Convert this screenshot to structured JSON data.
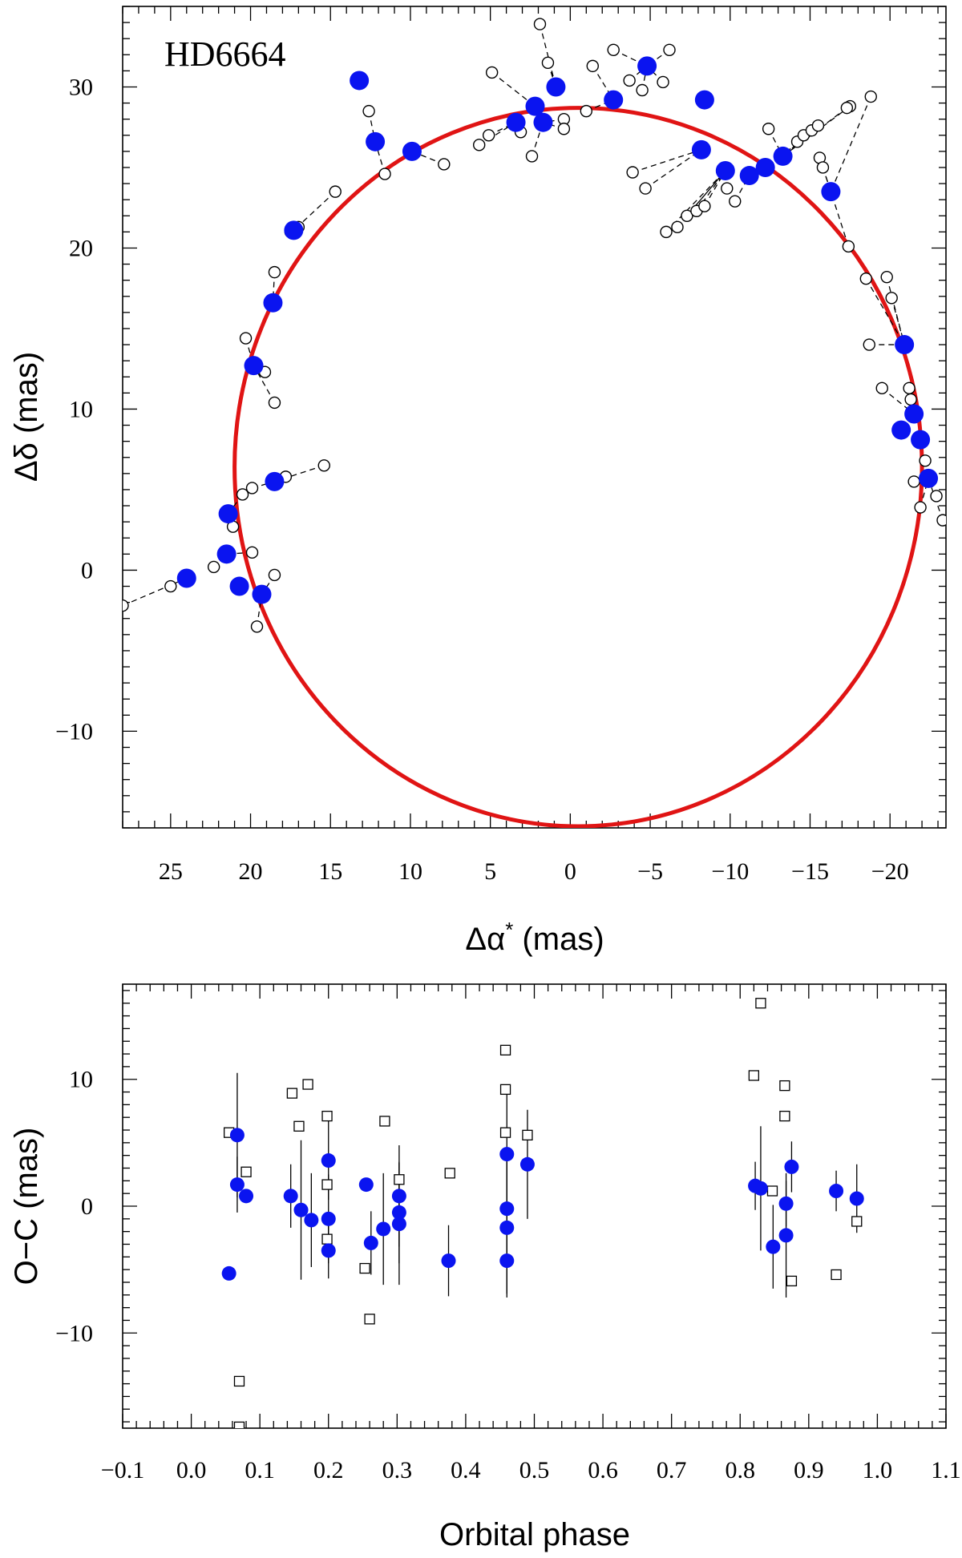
{
  "chart_data": [
    {
      "type": "scatter",
      "title": "HD6664",
      "xlabel": "Δα",
      "xlabel_sup": "*",
      "xlabel_unit": " (mas)",
      "ylabel": "Δδ (mas)",
      "xlim": [
        28,
        -23.5
      ],
      "ylim": [
        -16,
        35
      ],
      "xticks": [
        25,
        20,
        15,
        10,
        5,
        0,
        -5,
        -10,
        -15,
        -20
      ],
      "xtick_labels": [
        "25",
        "20",
        "15",
        "10",
        "5",
        "0",
        "−5",
        "−10",
        "−15",
        "−20"
      ],
      "yticks": [
        -10,
        0,
        10,
        20,
        30
      ],
      "ytick_labels": [
        "−10",
        "0",
        "10",
        "20",
        "30"
      ],
      "orbit_ellipse": {
        "center": [
          -0.5,
          6.4
        ],
        "semi_x": 21.5,
        "semi_y": 22.3
      },
      "filled_points": [
        [
          24,
          -0.5
        ],
        [
          21.5,
          1
        ],
        [
          20.7,
          -1
        ],
        [
          21.4,
          3.5
        ],
        [
          18.5,
          5.5
        ],
        [
          19.3,
          -1.5
        ],
        [
          19.8,
          12.7
        ],
        [
          18.6,
          16.6
        ],
        [
          17.3,
          21.1
        ],
        [
          13.2,
          30.4
        ],
        [
          12.2,
          26.6
        ],
        [
          9.9,
          26
        ],
        [
          3.4,
          27.8
        ],
        [
          2.2,
          28.8
        ],
        [
          1.7,
          27.8
        ],
        [
          0.9,
          30
        ],
        [
          -2.7,
          29.2
        ],
        [
          -4.8,
          31.3
        ],
        [
          -8.4,
          29.2
        ],
        [
          -8.2,
          26.1
        ],
        [
          -9.7,
          24.8
        ],
        [
          -11.2,
          24.5
        ],
        [
          -12.2,
          25
        ],
        [
          -13.3,
          25.7
        ],
        [
          -16.3,
          23.5
        ],
        [
          -20.9,
          14
        ],
        [
          -20.7,
          8.7
        ],
        [
          -21.5,
          9.7
        ],
        [
          -21.9,
          8.1
        ],
        [
          -22.4,
          5.7
        ]
      ],
      "open_points": [
        [
          28,
          -2.2
        ],
        [
          25,
          -1
        ],
        [
          22.3,
          0.2
        ],
        [
          19.9,
          1.1
        ],
        [
          21.1,
          2.7
        ],
        [
          20.5,
          4.7
        ],
        [
          19.9,
          5.1
        ],
        [
          17.8,
          5.8
        ],
        [
          15.4,
          6.5
        ],
        [
          19.6,
          -3.5
        ],
        [
          18.5,
          -0.3
        ],
        [
          20.3,
          14.4
        ],
        [
          19.1,
          12.3
        ],
        [
          18.5,
          10.4
        ],
        [
          18.5,
          18.5
        ],
        [
          17.5,
          21
        ],
        [
          17,
          21.3
        ],
        [
          14.7,
          23.5
        ],
        [
          12.6,
          28.5
        ],
        [
          11.6,
          24.6
        ],
        [
          7.9,
          25.2
        ],
        [
          5.7,
          26.4
        ],
        [
          5.1,
          27
        ],
        [
          4.9,
          30.9
        ],
        [
          2.4,
          25.7
        ],
        [
          3.1,
          27.2
        ],
        [
          1.9,
          33.9
        ],
        [
          1.4,
          31.5
        ],
        [
          0.4,
          28
        ],
        [
          0.4,
          27.4
        ],
        [
          -1,
          28.5
        ],
        [
          -1.4,
          31.3
        ],
        [
          -2.7,
          32.3
        ],
        [
          -3.7,
          30.4
        ],
        [
          -4.5,
          29.8
        ],
        [
          -5.8,
          30.3
        ],
        [
          -6.2,
          32.3
        ],
        [
          -3.9,
          24.7
        ],
        [
          -4.7,
          23.7
        ],
        [
          -6,
          21
        ],
        [
          -6.7,
          21.3
        ],
        [
          -7.3,
          22
        ],
        [
          -7.9,
          22.3
        ],
        [
          -8.4,
          22.6
        ],
        [
          -9.8,
          23.7
        ],
        [
          -10.3,
          22.9
        ],
        [
          -12.4,
          27.4
        ],
        [
          -14.2,
          26.6
        ],
        [
          -14.6,
          27
        ],
        [
          -15.1,
          27.3
        ],
        [
          -15.5,
          27.6
        ],
        [
          -15.6,
          25.6
        ],
        [
          -15.8,
          25
        ],
        [
          -17.5,
          28.8
        ],
        [
          -17.3,
          28.7
        ],
        [
          -18.8,
          29.4
        ],
        [
          -17.4,
          20.1
        ],
        [
          -18.5,
          18.1
        ],
        [
          -19.8,
          18.2
        ],
        [
          -20.1,
          16.9
        ],
        [
          -18.7,
          14
        ],
        [
          -19.5,
          11.3
        ],
        [
          -21.2,
          11.3
        ],
        [
          -21.3,
          10.6
        ],
        [
          -21.5,
          5.5
        ],
        [
          -22.2,
          6.8
        ],
        [
          -22.9,
          4.6
        ],
        [
          -23.3,
          3.1
        ],
        [
          -21.9,
          3.9
        ]
      ]
    },
    {
      "type": "scatter",
      "xlabel": "Orbital phase",
      "ylabel": "O−C (mas)",
      "xlim": [
        -0.1,
        1.1
      ],
      "ylim": [
        -17.5,
        17.5
      ],
      "xticks": [
        -0.1,
        0,
        0.1,
        0.2,
        0.3,
        0.4,
        0.5,
        0.6,
        0.7,
        0.8,
        0.9,
        1.0,
        1.1
      ],
      "xtick_labels": [
        "−0.1",
        "0.0",
        "0.1",
        "0.2",
        "0.3",
        "0.4",
        "0.5",
        "0.6",
        "0.7",
        "0.8",
        "0.9",
        "1.0",
        "1.1"
      ],
      "yticks": [
        -10,
        0,
        10
      ],
      "ytick_labels": [
        "−10",
        "0",
        "10"
      ],
      "filled_points": [
        {
          "x": 0.055,
          "y": -5.3,
          "err": 0
        },
        {
          "x": 0.067,
          "y": 5.6,
          "err": 4.9
        },
        {
          "x": 0.067,
          "y": 1.7,
          "err": 2.2
        },
        {
          "x": 0.08,
          "y": 0.8,
          "err": 0
        },
        {
          "x": 0.145,
          "y": 0.8,
          "err": 2.5
        },
        {
          "x": 0.16,
          "y": -0.3,
          "err": 5.5
        },
        {
          "x": 0.175,
          "y": -1.1,
          "err": 3.7
        },
        {
          "x": 0.2,
          "y": 3.6,
          "err": 3.1
        },
        {
          "x": 0.2,
          "y": -1,
          "err": 3.5
        },
        {
          "x": 0.2,
          "y": -3.5,
          "err": 2.2
        },
        {
          "x": 0.255,
          "y": 1.7,
          "err": 0
        },
        {
          "x": 0.262,
          "y": -2.9,
          "err": 2.5
        },
        {
          "x": 0.28,
          "y": -1.8,
          "err": 4.4
        },
        {
          "x": 0.303,
          "y": 0.8,
          "err": 4.0
        },
        {
          "x": 0.303,
          "y": -0.5,
          "err": 4.0
        },
        {
          "x": 0.303,
          "y": -1.4,
          "err": 4.8
        },
        {
          "x": 0.375,
          "y": -4.3,
          "err": 2.8
        },
        {
          "x": 0.46,
          "y": 4.1,
          "err": 4.9
        },
        {
          "x": 0.46,
          "y": -0.2,
          "err": 4.6
        },
        {
          "x": 0.46,
          "y": -1.7,
          "err": 5.2
        },
        {
          "x": 0.46,
          "y": -4.3,
          "err": 2.9
        },
        {
          "x": 0.49,
          "y": 3.3,
          "err": 4.3
        },
        {
          "x": 0.822,
          "y": 1.6,
          "err": 1.9
        },
        {
          "x": 0.83,
          "y": 1.4,
          "err": 4.9
        },
        {
          "x": 0.848,
          "y": -3.2,
          "err": 3.3
        },
        {
          "x": 0.867,
          "y": 0.2,
          "err": 1.8
        },
        {
          "x": 0.867,
          "y": -2.3,
          "err": 4.9
        },
        {
          "x": 0.875,
          "y": 3.1,
          "err": 2.0
        },
        {
          "x": 0.94,
          "y": 1.2,
          "err": 1.6
        },
        {
          "x": 0.97,
          "y": 0.6,
          "err": 2.7
        }
      ],
      "open_squares": [
        [
          0.055,
          5.8
        ],
        [
          0.07,
          -13.8
        ],
        [
          0.07,
          -17.4
        ],
        [
          0.08,
          2.7
        ],
        [
          0.147,
          8.9
        ],
        [
          0.157,
          6.3
        ],
        [
          0.17,
          9.6
        ],
        [
          0.198,
          7.1
        ],
        [
          0.198,
          1.7
        ],
        [
          0.198,
          -2.6
        ],
        [
          0.253,
          -4.9
        ],
        [
          0.26,
          -8.9
        ],
        [
          0.282,
          6.7
        ],
        [
          0.303,
          2.1
        ],
        [
          0.377,
          2.6
        ],
        [
          0.458,
          12.3
        ],
        [
          0.458,
          9.2
        ],
        [
          0.458,
          5.8
        ],
        [
          0.49,
          5.6
        ],
        [
          0.82,
          10.3
        ],
        [
          0.83,
          16
        ],
        [
          0.847,
          1.2
        ],
        [
          0.865,
          9.5
        ],
        [
          0.865,
          7.1
        ],
        [
          0.875,
          -5.9
        ],
        [
          0.94,
          -5.4
        ],
        [
          0.97,
          -1.2
        ]
      ]
    }
  ]
}
